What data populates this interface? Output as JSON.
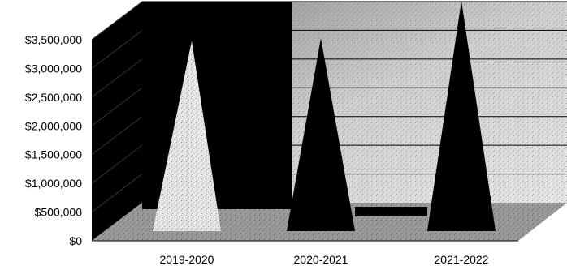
{
  "chart_data": {
    "type": "area",
    "title": "",
    "xlabel": "",
    "ylabel": "",
    "categories": [
      "2019-2020",
      "2020-2021",
      "2021-2022"
    ],
    "series": [
      {
        "values": [
          2900000,
          2950000,
          3600000
        ]
      }
    ],
    "ylim": [
      0,
      3500000
    ],
    "yticks": [
      "$0",
      "$500,000",
      "$1,000,000",
      "$1,500,000",
      "$2,000,000",
      "$2,500,000",
      "$3,000,000",
      "$3,500,000"
    ],
    "grid": true,
    "legend": "none",
    "colors": {
      "wall": "#b8b8b8",
      "floor": "#9a9a9a",
      "mass": "#000000",
      "gridline": "#000000"
    }
  }
}
